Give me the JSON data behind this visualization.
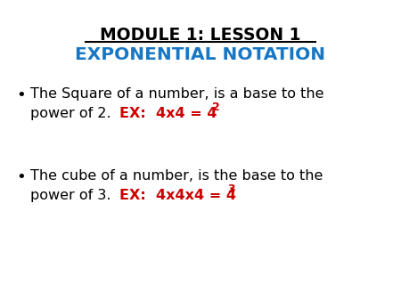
{
  "bg_color": "#ffffff",
  "title1": "MODULE 1: LESSON 1",
  "title2": "EXPONENTIAL NOTATION",
  "title1_color": "#000000",
  "title2_color": "#1777C4",
  "bullet1_line1": "The Square of a number, is a base to the",
  "bullet1_line2_black": "power of 2.    ",
  "bullet1_ex": "EX:  4x4 = 4",
  "bullet1_exp": "2",
  "bullet2_line1": "The cube of a number, is the base to the",
  "bullet2_line2_black": "power of 3.    ",
  "bullet2_ex": "EX:  4x4x4 = 4",
  "bullet2_exp": "3",
  "red_color": "#cc0000",
  "black_color": "#000000",
  "title1_fontsize": 13.5,
  "title2_fontsize": 14.5,
  "body_fontsize": 11.5,
  "bullet_fontsize": 13,
  "sup_fontsize": 9
}
